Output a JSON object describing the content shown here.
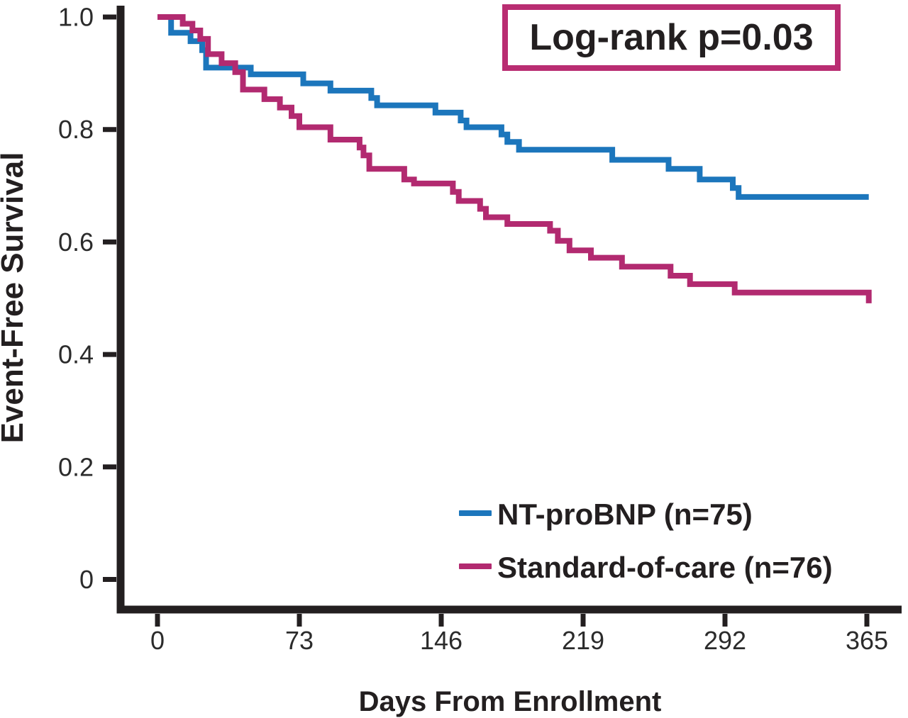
{
  "annotation_box": {
    "label": "Log-rank p=0.03"
  },
  "axes": {
    "y_label": "Event-Free Survival",
    "x_label": "Days From Enrollment",
    "y_ticks": [
      {
        "label": "1.0",
        "value": 1.0
      },
      {
        "label": "0.8",
        "value": 0.8
      },
      {
        "label": "0.6",
        "value": 0.6
      },
      {
        "label": "0.4",
        "value": 0.4
      },
      {
        "label": "0.2",
        "value": 0.2
      },
      {
        "label": "0",
        "value": 0.0
      }
    ],
    "x_ticks": [
      {
        "label": "0",
        "value": 0
      },
      {
        "label": "73",
        "value": 73
      },
      {
        "label": "146",
        "value": 146
      },
      {
        "label": "219",
        "value": 219
      },
      {
        "label": "292",
        "value": 292
      },
      {
        "label": "365",
        "value": 365
      }
    ]
  },
  "legend": [
    {
      "label": "NT-proBNP (n=75)",
      "color": "#1c76bc"
    },
    {
      "label": "Standard-of-care (n=76)",
      "color": "#b22a70"
    }
  ],
  "chart_data": {
    "type": "line",
    "subtype": "kaplan-meier-step",
    "title": "",
    "xlabel": "Days From Enrollment",
    "ylabel": "Event-Free Survival",
    "xlim": [
      0,
      365
    ],
    "ylim": [
      0,
      1.0
    ],
    "grid": false,
    "legend_position": "lower right inside plot",
    "annotation": "Log-rank p=0.03",
    "series": [
      {
        "name": "NT-proBNP (n=75)",
        "n": 75,
        "color": "#1c76bc",
        "points_note": "step function: [day, survival after drop at that day]",
        "points": [
          [
            0,
            1.0
          ],
          [
            7,
            0.972
          ],
          [
            17,
            0.957
          ],
          [
            23,
            0.941
          ],
          [
            25,
            0.91
          ],
          [
            48,
            0.898
          ],
          [
            75,
            0.882
          ],
          [
            89,
            0.869
          ],
          [
            110,
            0.856
          ],
          [
            113,
            0.843
          ],
          [
            143,
            0.83
          ],
          [
            156,
            0.816
          ],
          [
            159,
            0.804
          ],
          [
            177,
            0.791
          ],
          [
            180,
            0.778
          ],
          [
            186,
            0.764
          ],
          [
            234,
            0.746
          ],
          [
            263,
            0.73
          ],
          [
            279,
            0.711
          ],
          [
            296,
            0.696
          ],
          [
            299,
            0.68
          ],
          [
            366,
            0.68
          ]
        ]
      },
      {
        "name": "Standard-of-care (n=76)",
        "n": 76,
        "color": "#b22a70",
        "points_note": "step function: [day, survival after drop at that day]",
        "points": [
          [
            0,
            1.0
          ],
          [
            13,
            0.988
          ],
          [
            18,
            0.976
          ],
          [
            22,
            0.961
          ],
          [
            26,
            0.934
          ],
          [
            33,
            0.918
          ],
          [
            40,
            0.902
          ],
          [
            44,
            0.871
          ],
          [
            55,
            0.854
          ],
          [
            63,
            0.839
          ],
          [
            69,
            0.824
          ],
          [
            73,
            0.804
          ],
          [
            89,
            0.782
          ],
          [
            104,
            0.768
          ],
          [
            106,
            0.754
          ],
          [
            109,
            0.73
          ],
          [
            127,
            0.711
          ],
          [
            132,
            0.704
          ],
          [
            152,
            0.689
          ],
          [
            155,
            0.673
          ],
          [
            166,
            0.659
          ],
          [
            169,
            0.644
          ],
          [
            180,
            0.632
          ],
          [
            202,
            0.62
          ],
          [
            206,
            0.602
          ],
          [
            212,
            0.585
          ],
          [
            223,
            0.572
          ],
          [
            239,
            0.556
          ],
          [
            264,
            0.54
          ],
          [
            274,
            0.525
          ],
          [
            297,
            0.51
          ],
          [
            366,
            0.51
          ],
          [
            366,
            0.491
          ]
        ]
      }
    ]
  }
}
